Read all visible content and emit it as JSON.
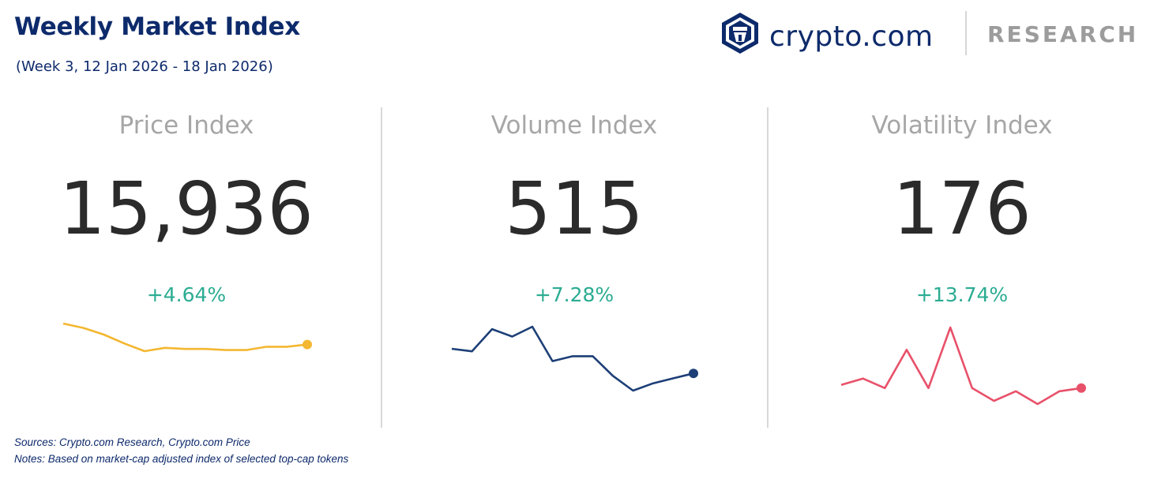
{
  "header": {
    "title": "Weekly Market Index",
    "subtitle": "(Week 3, 12 Jan 2026 - 18 Jan 2026)"
  },
  "brand": {
    "name": "crypto.com",
    "section": "RESEARCH",
    "logo_icon": "crypto-com-shield-logo"
  },
  "panels": [
    {
      "label": "Price Index",
      "value": "15,936",
      "change": "+4.64%",
      "color": "#f4b731",
      "sparkline": [
        90,
        86,
        80,
        72,
        65,
        68,
        67,
        67,
        66,
        66,
        69,
        69,
        71
      ]
    },
    {
      "label": "Volume Index",
      "value": "515",
      "change": "+7.28%",
      "color": "#1d3f77",
      "sparkline": [
        105,
        104,
        113,
        110,
        114,
        100,
        102,
        102,
        94,
        88,
        91,
        93,
        95
      ]
    },
    {
      "label": "Volatility Index",
      "value": "176",
      "change": "+13.74%",
      "color": "#e8516a",
      "sparkline": [
        95,
        97,
        94,
        106,
        94,
        113,
        94,
        90,
        93,
        89,
        93,
        94
      ]
    }
  ],
  "colors": {
    "title": "#0d2a6b",
    "change_positive": "#2bac92",
    "label": "#a6a6a6"
  },
  "footer": {
    "sources": "Sources: Crypto.com Research,  Crypto.com Price",
    "notes": "Notes: Based on market-cap adjusted index of selected top-cap tokens"
  }
}
